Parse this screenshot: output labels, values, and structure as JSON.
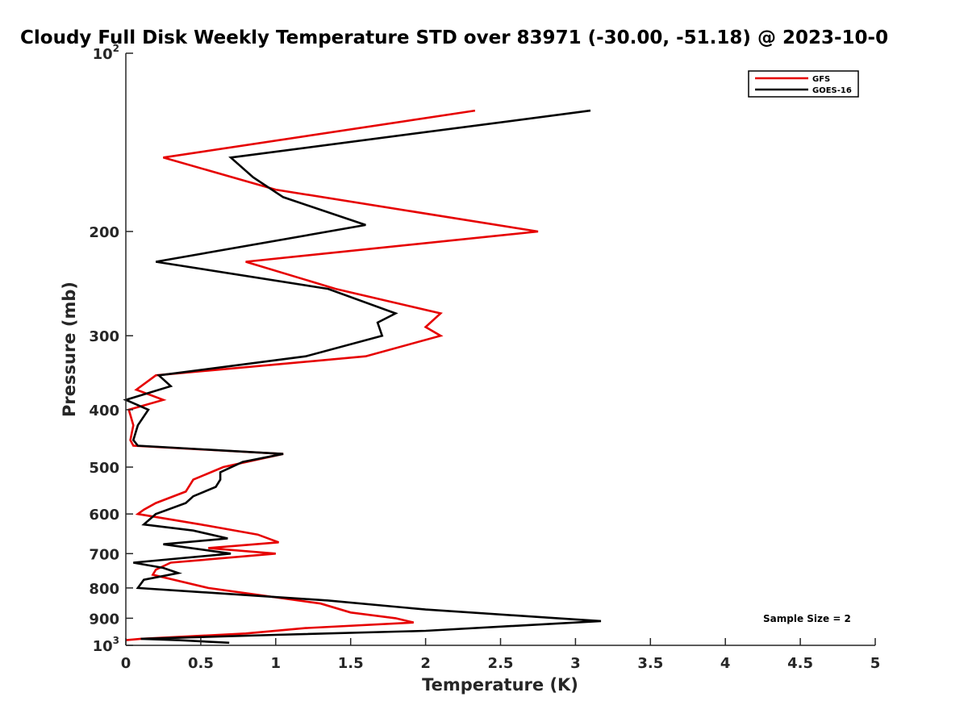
{
  "chart_data": {
    "type": "line",
    "title": "Cloudy Full Disk Weekly Temperature STD over 83971 (-30.00, -51.18) @ 2023-10-0",
    "xlabel": "Temperature (K)",
    "ylabel": "Pressure (mb)",
    "xlim": [
      0,
      5
    ],
    "ylim": [
      100,
      1000
    ],
    "y_scale": "log",
    "y_reversed": true,
    "grid": false,
    "legend_position": "top-right",
    "x_ticks": [
      {
        "value": 0,
        "label": "0"
      },
      {
        "value": 0.5,
        "label": "0.5"
      },
      {
        "value": 1,
        "label": "1"
      },
      {
        "value": 1.5,
        "label": "1.5"
      },
      {
        "value": 2,
        "label": "2"
      },
      {
        "value": 2.5,
        "label": "2.5"
      },
      {
        "value": 3,
        "label": "3"
      },
      {
        "value": 3.5,
        "label": "3.5"
      },
      {
        "value": 4,
        "label": "4"
      },
      {
        "value": 4.5,
        "label": "4.5"
      },
      {
        "value": 5,
        "label": "5"
      }
    ],
    "y_ticks": [
      {
        "value": 100,
        "label": "10",
        "sup": "2"
      },
      {
        "value": 200,
        "label": "200",
        "sup": ""
      },
      {
        "value": 300,
        "label": "300",
        "sup": ""
      },
      {
        "value": 400,
        "label": "400",
        "sup": ""
      },
      {
        "value": 500,
        "label": "500",
        "sup": ""
      },
      {
        "value": 600,
        "label": "600",
        "sup": ""
      },
      {
        "value": 700,
        "label": "700",
        "sup": ""
      },
      {
        "value": 800,
        "label": "800",
        "sup": ""
      },
      {
        "value": 900,
        "label": "900",
        "sup": ""
      },
      {
        "value": 1000,
        "label": "10",
        "sup": "3"
      }
    ],
    "series": [
      {
        "name": "GFS",
        "color": "#e60000",
        "points": [
          [
            2.33,
            125
          ],
          [
            0.25,
            150
          ],
          [
            1.0,
            170
          ],
          [
            2.75,
            200
          ],
          [
            0.8,
            225
          ],
          [
            1.4,
            250
          ],
          [
            2.1,
            275
          ],
          [
            2.0,
            290
          ],
          [
            2.1,
            300
          ],
          [
            1.6,
            325
          ],
          [
            0.2,
            350
          ],
          [
            0.07,
            370
          ],
          [
            0.25,
            385
          ],
          [
            0.02,
            400
          ],
          [
            0.05,
            425
          ],
          [
            0.03,
            450
          ],
          [
            0.05,
            460
          ],
          [
            1.05,
            475
          ],
          [
            0.65,
            500
          ],
          [
            0.45,
            525
          ],
          [
            0.4,
            550
          ],
          [
            0.2,
            575
          ],
          [
            0.12,
            590
          ],
          [
            0.08,
            600
          ],
          [
            0.5,
            625
          ],
          [
            0.88,
            650
          ],
          [
            1.02,
            670
          ],
          [
            0.55,
            685
          ],
          [
            1.0,
            700
          ],
          [
            0.3,
            725
          ],
          [
            0.2,
            745
          ],
          [
            0.18,
            760
          ],
          [
            0.55,
            800
          ],
          [
            1.3,
            850
          ],
          [
            1.5,
            880
          ],
          [
            1.8,
            900
          ],
          [
            1.92,
            915
          ],
          [
            1.2,
            935
          ],
          [
            0.8,
            955
          ],
          [
            0.1,
            975
          ],
          [
            0.0,
            980
          ]
        ]
      },
      {
        "name": "GOES-16",
        "color": "#000000",
        "points": [
          [
            3.1,
            125
          ],
          [
            0.7,
            150
          ],
          [
            0.85,
            162
          ],
          [
            1.05,
            175
          ],
          [
            1.6,
            195
          ],
          [
            0.2,
            225
          ],
          [
            1.35,
            250
          ],
          [
            1.8,
            275
          ],
          [
            1.68,
            285
          ],
          [
            1.71,
            300
          ],
          [
            1.2,
            325
          ],
          [
            0.22,
            350
          ],
          [
            0.3,
            365
          ],
          [
            0.0,
            385
          ],
          [
            0.15,
            400
          ],
          [
            0.08,
            425
          ],
          [
            0.05,
            450
          ],
          [
            0.08,
            460
          ],
          [
            1.05,
            475
          ],
          [
            0.78,
            490
          ],
          [
            0.63,
            510
          ],
          [
            0.63,
            525
          ],
          [
            0.6,
            540
          ],
          [
            0.45,
            560
          ],
          [
            0.4,
            575
          ],
          [
            0.2,
            600
          ],
          [
            0.12,
            625
          ],
          [
            0.45,
            640
          ],
          [
            0.68,
            660
          ],
          [
            0.25,
            675
          ],
          [
            0.7,
            700
          ],
          [
            0.05,
            725
          ],
          [
            0.25,
            740
          ],
          [
            0.35,
            755
          ],
          [
            0.12,
            775
          ],
          [
            0.08,
            800
          ],
          [
            1.35,
            840
          ],
          [
            2.0,
            870
          ],
          [
            2.88,
            900
          ],
          [
            3.17,
            910
          ],
          [
            2.0,
            945
          ],
          [
            1.0,
            960
          ],
          [
            0.1,
            975
          ],
          [
            0.35,
            980
          ],
          [
            0.69,
            990
          ]
        ]
      }
    ],
    "annotations": [
      {
        "text": "Sample Size = 2"
      }
    ]
  }
}
